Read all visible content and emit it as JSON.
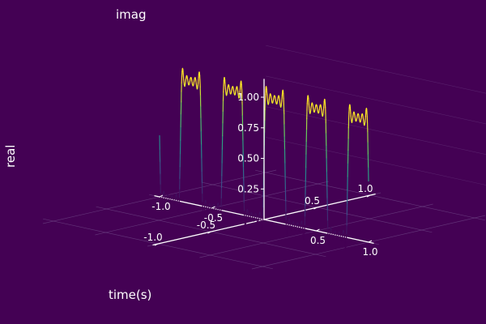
{
  "chart_data": {
    "type": "line",
    "subtype": "3d-surface-line",
    "axis_labels": {
      "x": "time(s)",
      "y": "imag",
      "z": "real"
    },
    "xlim": [
      -1.1,
      1.1
    ],
    "ylim": [
      -1.1,
      1.1
    ],
    "zlim": [
      0,
      1.1
    ],
    "x_ticks": [
      "-1.0",
      "-0.5",
      "0.5",
      "1.0"
    ],
    "x_tick_values": [
      -1.0,
      -0.5,
      0.5,
      1.0
    ],
    "y_ticks": [
      "-1.0",
      "-0.5",
      "0.5",
      "1.0"
    ],
    "y_tick_values": [
      -1.0,
      -0.5,
      0.5,
      1.0
    ],
    "z_ticks": [
      "0.25",
      "0.50",
      "0.75",
      "1.00"
    ],
    "z_tick_values": [
      0.25,
      0.5,
      0.75,
      1.0
    ],
    "grid": true,
    "legend": "none",
    "colormap": "viridis",
    "series": [
      {
        "signal": "square wave (partial Fourier sum)",
        "period": 0.4,
        "amplitude_low": 0.0,
        "amplitude_high": 1.0,
        "harmonics": 9,
        "t_range": [
          -1.0,
          1.0
        ]
      }
    ]
  },
  "colors": {
    "background": "#440154",
    "text": "#ffffff",
    "grid": "#7a5a94",
    "colormap_low": "#440154",
    "colormap_high": "#fde725"
  }
}
